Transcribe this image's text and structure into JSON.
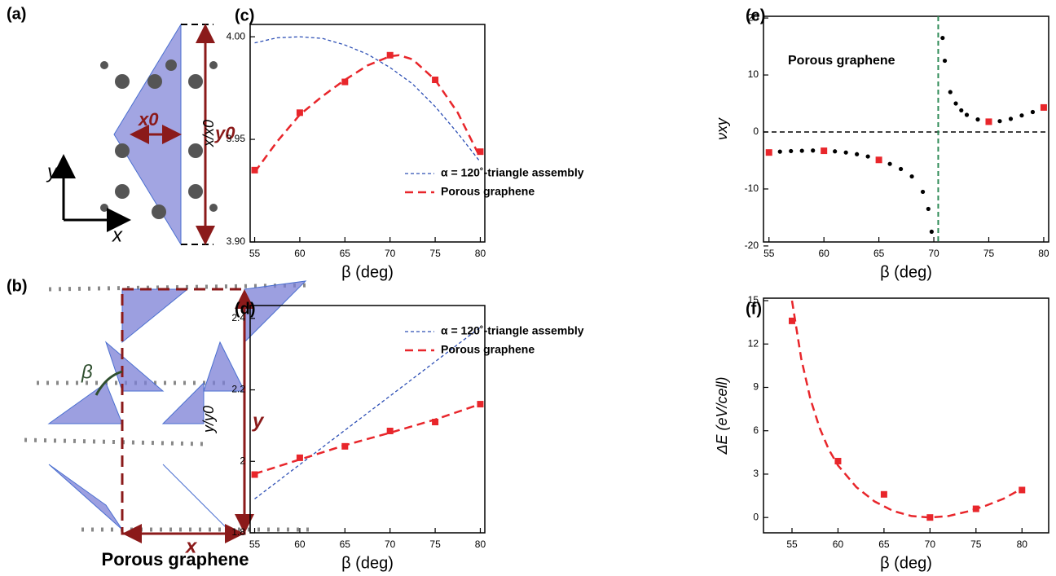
{
  "panel_a": {
    "label": "(a)",
    "x0_label": "x0",
    "y0_label": "y0",
    "axis_y": "y",
    "axis_x": "x"
  },
  "panel_b": {
    "label": "(b)",
    "angle": "β",
    "y_label": "y",
    "x_label": "x",
    "caption": "Porous graphene"
  },
  "chart_data": [
    {
      "type": "line",
      "label": "(c)",
      "x_label": "β (deg)",
      "y_label": "x/x0",
      "xlim": [
        54.5,
        80.5
      ],
      "xticks": [
        55,
        60,
        65,
        70,
        75,
        80
      ],
      "ylim": [
        3.9,
        4.006
      ],
      "yticks": [
        {
          "value": 3.9,
          "label": "3.90"
        },
        {
          "value": 3.95,
          "label": "3.95"
        },
        {
          "value": 4.0,
          "label": "4.00"
        }
      ],
      "legend": "lower left",
      "series": [
        {
          "name": "α = 120˚-triangle assembly",
          "color": "#2d4fb5",
          "style": "short-dashed",
          "x": [
            55,
            57.5,
            60,
            62.5,
            65,
            67.5,
            70,
            72.5,
            75,
            77.5,
            80
          ],
          "values": [
            3.997,
            3.9995,
            4.0,
            3.9992,
            3.996,
            3.9915,
            3.985,
            3.977,
            3.966,
            3.953,
            3.939
          ]
        },
        {
          "name": "Porous graphene",
          "color": "#e8262b",
          "style": "dashed",
          "x": [
            55,
            57.5,
            60,
            62.5,
            65,
            67.5,
            70,
            71,
            72.5,
            75,
            77.5,
            80
          ],
          "values": [
            3.934,
            3.949,
            3.962,
            3.971,
            3.979,
            3.986,
            3.9905,
            3.991,
            3.989,
            3.979,
            3.963,
            3.941
          ]
        },
        {
          "color": "#e8262b",
          "style": "squares",
          "x": [
            55,
            60,
            65,
            70,
            75,
            80
          ],
          "values": [
            3.935,
            3.963,
            3.978,
            3.991,
            3.979,
            3.944
          ]
        }
      ]
    },
    {
      "type": "line",
      "label": "(d)",
      "x_label": "β (deg)",
      "y_label": "y/y0",
      "xlim": [
        54.5,
        80.5
      ],
      "xticks": [
        55,
        60,
        65,
        70,
        75,
        80
      ],
      "ylim": [
        1.8,
        2.436
      ],
      "yticks": [
        1.8,
        2.0,
        2.2,
        2.4
      ],
      "legend": "upper left",
      "series": [
        {
          "name": "α = 120˚-triangle assembly",
          "color": "#2d4fb5",
          "style": "short-dashed",
          "x": [
            55,
            80
          ],
          "values": [
            1.895,
            2.375
          ]
        },
        {
          "name": "Porous graphene",
          "color": "#e8262b",
          "style": "dashed",
          "x": [
            55,
            60,
            65,
            70,
            75,
            80
          ],
          "values": [
            1.965,
            2.005,
            2.045,
            2.08,
            2.117,
            2.16
          ]
        },
        {
          "color": "#e8262b",
          "style": "squares",
          "x": [
            55,
            60,
            65,
            70,
            75,
            80
          ],
          "values": [
            1.963,
            2.01,
            2.042,
            2.085,
            2.11,
            2.16
          ]
        }
      ]
    },
    {
      "type": "line",
      "label": "(e)",
      "x_label": "β (deg)",
      "y_label": "νxy",
      "annotation": "Porous graphene",
      "xlim": [
        54.5,
        80.45
      ],
      "xticks": [
        55,
        60,
        65,
        70,
        75,
        80
      ],
      "ylim": [
        -19.3,
        20.3
      ],
      "yticks": [
        -20,
        -10,
        0,
        10,
        20
      ],
      "hlines": [
        {
          "value": 0,
          "color": "#000000"
        }
      ],
      "vlines": [
        {
          "value": 70.4,
          "color": "#2e8b57"
        }
      ],
      "series": [
        {
          "color": "#000000",
          "style": "dots",
          "x": [
            55,
            56,
            57,
            58,
            59,
            60,
            61,
            62,
            63,
            64,
            65,
            66,
            67,
            68,
            69,
            69.5,
            69.8,
            70.8,
            71,
            71.5,
            72,
            72.5,
            73,
            74,
            75,
            76,
            77,
            78,
            79,
            80
          ],
          "values": [
            -3.6,
            -3.45,
            -3.35,
            -3.3,
            -3.25,
            -3.3,
            -3.4,
            -3.6,
            -3.9,
            -4.3,
            -4.9,
            -5.6,
            -6.5,
            -7.8,
            -10.5,
            -13.5,
            -17.5,
            16.5,
            12.5,
            7,
            5,
            3.8,
            3,
            2.2,
            1.8,
            1.9,
            2.3,
            2.9,
            3.5,
            4.3
          ]
        },
        {
          "color": "#e8262b",
          "style": "squares",
          "x": [
            55,
            60,
            65,
            75,
            80
          ],
          "values": [
            -3.6,
            -3.3,
            -4.9,
            1.8,
            4.3
          ]
        }
      ]
    },
    {
      "type": "line",
      "label": "(f)",
      "x_label": "β (deg)",
      "y_label": "ΔE (eV/cell)",
      "xlim": [
        51.9,
        82.9
      ],
      "xticks": [
        55,
        60,
        65,
        70,
        75,
        80
      ],
      "ylim": [
        -1.06,
        15.17
      ],
      "yticks": [
        0,
        3,
        6,
        9,
        12,
        15
      ],
      "series": [
        {
          "color": "#e8262b",
          "style": "dashed",
          "x": [
            55,
            56,
            57,
            58,
            59,
            60,
            62,
            64,
            66,
            68,
            70,
            72,
            74,
            76,
            78,
            80
          ],
          "values": [
            15,
            11,
            8.2,
            6.2,
            4.7,
            3.6,
            2.1,
            1.1,
            0.45,
            0.1,
            0,
            0.1,
            0.4,
            0.8,
            1.3,
            2.0
          ]
        },
        {
          "color": "#e8262b",
          "style": "squares",
          "x": [
            55,
            60,
            65,
            70,
            75,
            80
          ],
          "values": [
            13.6,
            3.9,
            1.6,
            0,
            0.6,
            1.9
          ]
        }
      ]
    }
  ]
}
